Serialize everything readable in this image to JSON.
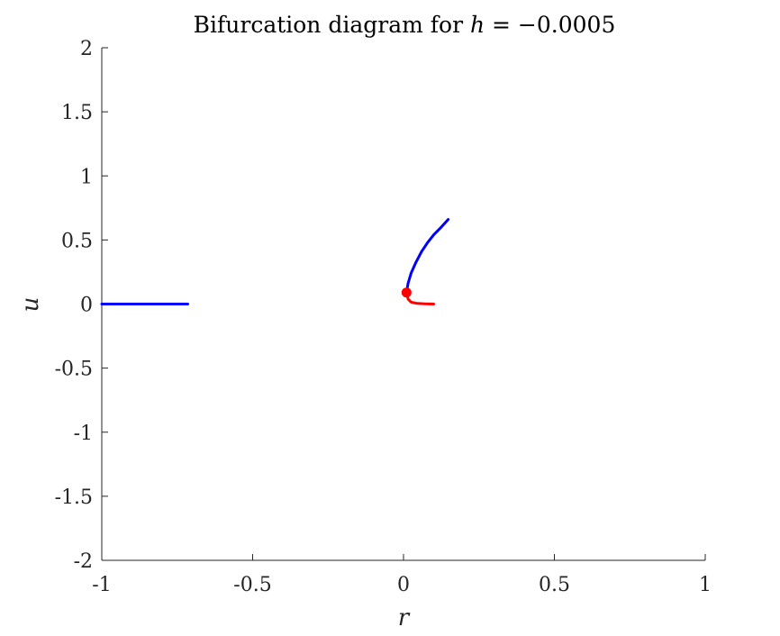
{
  "chart_data": {
    "type": "line",
    "title_prefix": "Bifurcation diagram for ",
    "title_var": "h",
    "title_rest": " = −0.0005",
    "xlabel": "r",
    "ylabel": "u",
    "xlim": [
      -1,
      1
    ],
    "ylim": [
      -2,
      2
    ],
    "xticks": [
      -1,
      -0.5,
      0,
      0.5,
      1
    ],
    "xtick_labels": [
      "-1",
      "-0.5",
      "0",
      "0.5",
      "1"
    ],
    "yticks": [
      -2,
      -1.5,
      -1,
      -0.5,
      0,
      0.5,
      1,
      1.5,
      2
    ],
    "ytick_labels": [
      "-2",
      "-1.5",
      "-1",
      "-0.5",
      "0",
      "0.5",
      "1",
      "1.5",
      "2"
    ],
    "grid": false,
    "series": [
      {
        "key": "stable-left",
        "color": "#0000ff",
        "points": [
          [
            -1,
            0
          ],
          [
            -0.85,
            0
          ],
          [
            -0.715,
            0
          ]
        ]
      },
      {
        "key": "stable-upper",
        "color": "#0000ff",
        "points": [
          [
            0.01,
            0.09
          ],
          [
            0.015,
            0.16
          ],
          [
            0.025,
            0.24
          ],
          [
            0.04,
            0.32
          ],
          [
            0.06,
            0.41
          ],
          [
            0.08,
            0.48
          ],
          [
            0.1,
            0.54
          ],
          [
            0.125,
            0.6
          ],
          [
            0.148,
            0.66
          ]
        ]
      },
      {
        "key": "unstable-lower",
        "color": "#ff0000",
        "points": [
          [
            0.01,
            0.09
          ],
          [
            0.015,
            0.04
          ],
          [
            0.025,
            0.015
          ],
          [
            0.045,
            0.005
          ],
          [
            0.07,
            0.002
          ],
          [
            0.1,
            0.0
          ]
        ]
      }
    ],
    "markers": [
      {
        "key": "fold-point",
        "x": 0.01,
        "y": 0.09,
        "color": "#ff0000"
      }
    ]
  }
}
